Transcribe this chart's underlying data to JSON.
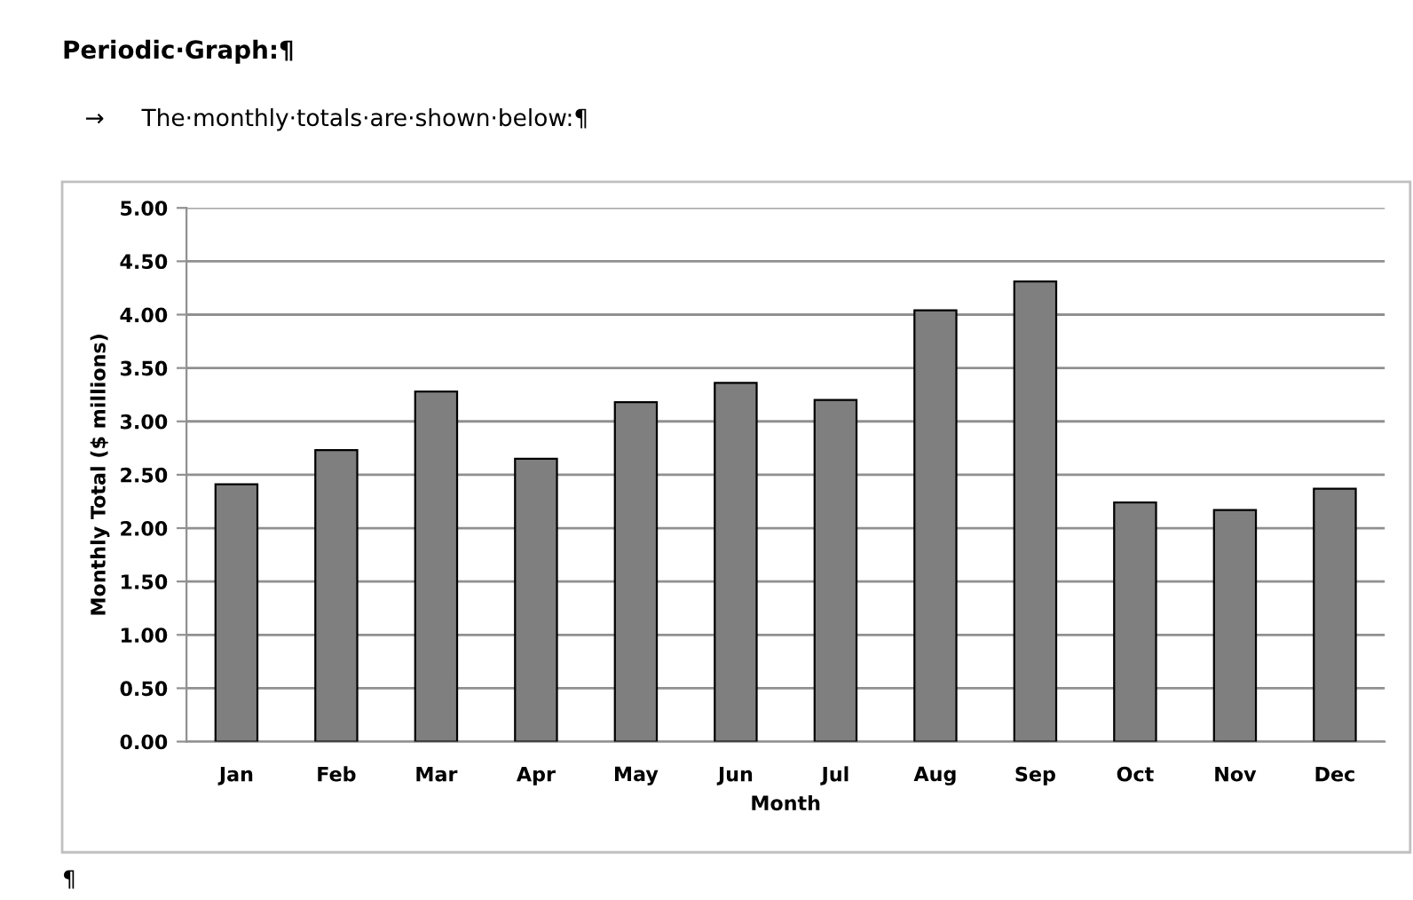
{
  "chart_data": {
    "type": "bar",
    "title": "Periodic·Graph:¶",
    "subtitle": "→     The·monthly·totals·are·shown·below:¶",
    "xlabel": "Month",
    "ylabel": "Monthly Total ($ millions)",
    "categories": [
      "Jan",
      "Feb",
      "Mar",
      "Apr",
      "May",
      "Jun",
      "Jul",
      "Aug",
      "Sep",
      "Oct",
      "Nov",
      "Dec"
    ],
    "values": [
      2.41,
      2.73,
      3.28,
      2.65,
      3.18,
      3.36,
      3.2,
      4.04,
      4.31,
      2.24,
      2.17,
      2.37
    ],
    "color": "#7f7f7f",
    "ylim": [
      0,
      5
    ],
    "yticks": [
      {
        "value": 0,
        "label": "0.00"
      },
      {
        "value": 0.5,
        "label": "0.50"
      },
      {
        "value": 1,
        "label": "1.00"
      },
      {
        "value": 1.5,
        "label": "1.50"
      },
      {
        "value": 2,
        "label": "2.00"
      },
      {
        "value": 2.5,
        "label": "2.50"
      },
      {
        "value": 3,
        "label": "3.00"
      },
      {
        "value": 3.5,
        "label": "3.50"
      },
      {
        "value": 4,
        "label": "4.00"
      },
      {
        "value": 4.5,
        "label": "4.50"
      },
      {
        "value": 5,
        "label": "5.00"
      }
    ],
    "grid": "y",
    "legend": false,
    "annotations": [
      "¶"
    ]
  }
}
